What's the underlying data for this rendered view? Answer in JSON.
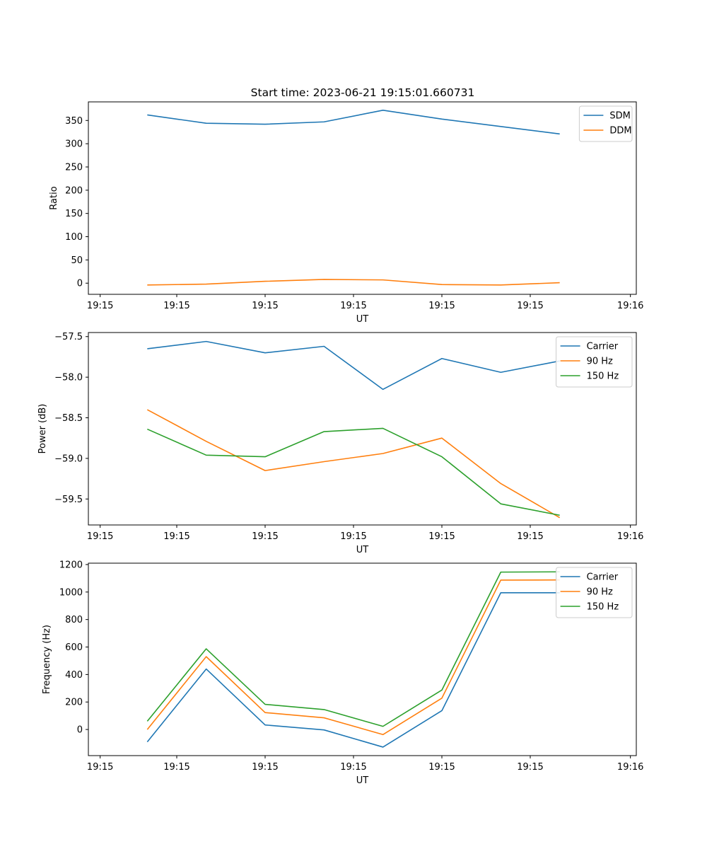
{
  "figure": {
    "title": "Start time: 2023-06-21 19:15:01.660731"
  },
  "chart_data": [
    {
      "type": "line",
      "title": "Start time: 2023-06-21 19:15:01.660731",
      "xlabel": "UT",
      "ylabel": "Ratio",
      "x": [
        1,
        2,
        3,
        4,
        5,
        6,
        7,
        8
      ],
      "x_tick_values": [
        0.2,
        1.5,
        3.0,
        4.5,
        6.0,
        7.5,
        9.2
      ],
      "x_tick_labels": [
        "19:15",
        "19:15",
        "19:15",
        "19:15",
        "19:15",
        "19:15",
        "19:16"
      ],
      "xlim": [
        0,
        9.3
      ],
      "ylim": [
        -24,
        390
      ],
      "y_ticks": [
        0,
        50,
        100,
        150,
        200,
        250,
        300,
        350
      ],
      "legend": "top-right",
      "grid": false,
      "series": [
        {
          "name": "SDM",
          "color": "#1f77b4",
          "values": [
            362,
            344,
            342,
            347,
            372,
            353,
            337,
            321
          ]
        },
        {
          "name": "DDM",
          "color": "#ff7f0e",
          "values": [
            -4,
            -2,
            4,
            8,
            7,
            -3,
            -4,
            1
          ]
        }
      ]
    },
    {
      "type": "line",
      "title": "",
      "xlabel": "UT",
      "ylabel": "Power (dB)",
      "x": [
        1,
        2,
        3,
        4,
        5,
        6,
        7,
        8
      ],
      "x_tick_values": [
        0.2,
        1.5,
        3.0,
        4.5,
        6.0,
        7.5,
        9.2
      ],
      "x_tick_labels": [
        "19:15",
        "19:15",
        "19:15",
        "19:15",
        "19:15",
        "19:15",
        "19:16"
      ],
      "xlim": [
        0,
        9.3
      ],
      "ylim": [
        -59.82,
        -57.45
      ],
      "y_ticks": [
        -57.5,
        -58.0,
        -58.5,
        -59.0,
        -59.5
      ],
      "y_tick_labels": [
        "−57.5",
        "−58.0",
        "−58.5",
        "−59.0",
        "−59.5"
      ],
      "legend": "top-right",
      "grid": false,
      "series": [
        {
          "name": "Carrier",
          "color": "#1f77b4",
          "values": [
            -57.65,
            -57.56,
            -57.7,
            -57.62,
            -58.15,
            -57.77,
            -57.94,
            -57.8
          ]
        },
        {
          "name": "90 Hz",
          "color": "#ff7f0e",
          "values": [
            -58.4,
            -58.79,
            -59.15,
            -59.04,
            -58.94,
            -58.75,
            -59.31,
            -59.73
          ]
        },
        {
          "name": "150 Hz",
          "color": "#2ca02c",
          "values": [
            -58.64,
            -58.96,
            -58.98,
            -58.67,
            -58.63,
            -58.98,
            -59.56,
            -59.7
          ]
        }
      ]
    },
    {
      "type": "line",
      "title": "",
      "xlabel": "UT",
      "ylabel": "Frequency (Hz)",
      "x": [
        1,
        2,
        3,
        4,
        5,
        6,
        7,
        8
      ],
      "x_tick_values": [
        0.2,
        1.5,
        3.0,
        4.5,
        6.0,
        7.5,
        9.2
      ],
      "x_tick_labels": [
        "19:15",
        "19:15",
        "19:15",
        "19:15",
        "19:15",
        "19:15",
        "19:16"
      ],
      "xlim": [
        0,
        9.3
      ],
      "ylim": [
        -190,
        1210
      ],
      "y_ticks": [
        0,
        200,
        400,
        600,
        800,
        1000,
        1200
      ],
      "legend": "top-right",
      "grid": false,
      "series": [
        {
          "name": "Carrier",
          "color": "#1f77b4",
          "values": [
            -90,
            440,
            33,
            -3,
            -128,
            137,
            995,
            995
          ]
        },
        {
          "name": "90 Hz",
          "color": "#ff7f0e",
          "values": [
            0,
            530,
            123,
            85,
            -37,
            228,
            1087,
            1088
          ]
        },
        {
          "name": "150 Hz",
          "color": "#2ca02c",
          "values": [
            60,
            587,
            183,
            145,
            23,
            287,
            1145,
            1147
          ]
        }
      ]
    }
  ]
}
